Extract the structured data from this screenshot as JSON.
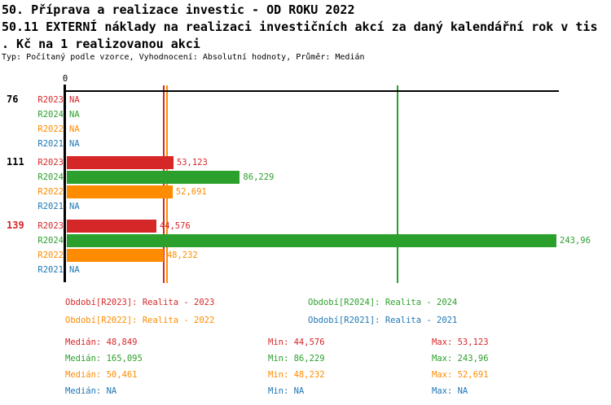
{
  "header": {
    "line1": "50. Příprava a realizace investic - OD ROKU 2022",
    "line2": "50.11 EXTERNÍ náklady na realizaci investičních akcí za daný kalendářní rok v tis",
    "line3": ". Kč na 1 realizovanou akci",
    "meta": "Typ: Počítaný podle vzorce, Vyhodnocení: Absolutní hodnoty, Průměr: Medián"
  },
  "chart_data": {
    "type": "bar",
    "orientation": "horizontal",
    "title": "50.11 EXTERNÍ náklady na realizaci investičních akcí za daný kalendářní rok v tis. Kč na 1 realizovanou akci",
    "x_axis": {
      "zero_label": "0",
      "min": 0,
      "implied_max": 246
    },
    "grid": "off",
    "series": [
      {
        "id": "R2023",
        "name": "Realita - 2023",
        "color": "#d62728",
        "median": 48.849
      },
      {
        "id": "R2024",
        "name": "Realita - 2024",
        "color": "#2ca02c",
        "median": 165.095
      },
      {
        "id": "R2022",
        "name": "Realita - 2022",
        "color": "#ff8c00",
        "median": 50.461
      },
      {
        "id": "R2021",
        "name": "Realita - 2021",
        "color": "#1f77b4",
        "median": null
      }
    ],
    "row_order": [
      "R2023",
      "R2024",
      "R2022",
      "R2021"
    ],
    "groups": [
      {
        "label": "76",
        "label_color": "#000000",
        "rows": [
          {
            "series": "R2023",
            "value": null,
            "display": "NA"
          },
          {
            "series": "R2024",
            "value": null,
            "display": "NA"
          },
          {
            "series": "R2022",
            "value": null,
            "display": "NA"
          },
          {
            "series": "R2021",
            "value": null,
            "display": "NA"
          }
        ]
      },
      {
        "label": "111",
        "label_color": "#000000",
        "rows": [
          {
            "series": "R2023",
            "value": 53.123,
            "display": "53,123"
          },
          {
            "series": "R2024",
            "value": 86.229,
            "display": "86,229"
          },
          {
            "series": "R2022",
            "value": 52.691,
            "display": "52,691"
          },
          {
            "series": "R2021",
            "value": null,
            "display": "NA"
          }
        ]
      },
      {
        "label": "139",
        "label_color": "#d62728",
        "rows": [
          {
            "series": "R2023",
            "value": 44.576,
            "display": "44,576"
          },
          {
            "series": "R2024",
            "value": 243.96,
            "display": "243,96"
          },
          {
            "series": "R2022",
            "value": 48.232,
            "display": "48,232"
          },
          {
            "series": "R2021",
            "value": null,
            "display": "NA"
          }
        ]
      }
    ],
    "median_lines": [
      {
        "series": "R2023",
        "value": 48.849
      },
      {
        "series": "R2022",
        "value": 50.461
      },
      {
        "series": "R2024",
        "value": 165.095
      }
    ]
  },
  "legend": {
    "items": [
      {
        "series": "R2023",
        "text": "Období[R2023]: Realita - 2023"
      },
      {
        "series": "R2024",
        "text": "Období[R2024]: Realita - 2024"
      },
      {
        "series": "R2022",
        "text": "Období[R2022]: Realita - 2022"
      },
      {
        "series": "R2021",
        "text": "Období[R2021]: Realita - 2021"
      }
    ]
  },
  "stats": {
    "rows": [
      {
        "series": "R2023",
        "median": "Medián: 48,849",
        "min": "Min: 44,576",
        "max": "Max: 53,123"
      },
      {
        "series": "R2024",
        "median": "Medián: 165,095",
        "min": "Min: 86,229",
        "max": "Max: 243,96"
      },
      {
        "series": "R2022",
        "median": "Medián: 50,461",
        "min": "Min: 48,232",
        "max": "Max: 52,691"
      },
      {
        "series": "R2021",
        "median": "Medián: NA",
        "min": "Min: NA",
        "max": "Max: NA"
      }
    ]
  }
}
